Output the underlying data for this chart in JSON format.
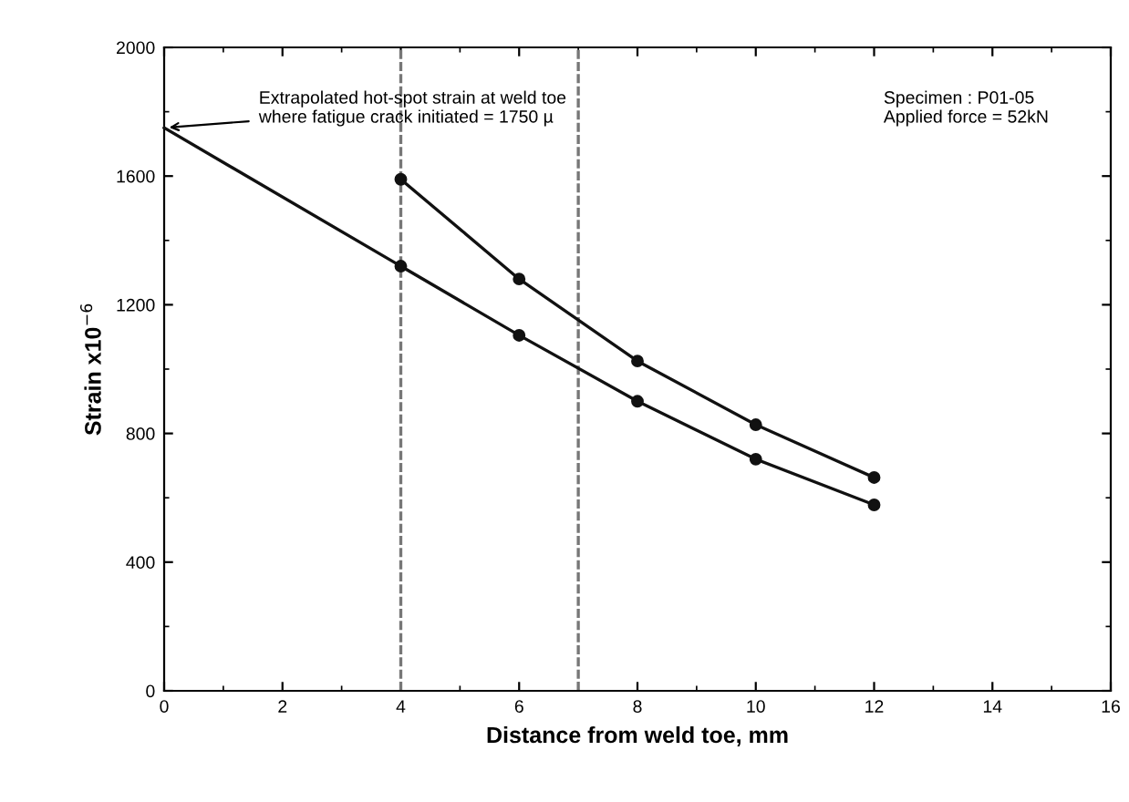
{
  "chart_data": {
    "type": "line",
    "xlabel": "Distance from weld toe, mm",
    "ylabel": "Strain x10$^{−6}$",
    "xlim": [
      0,
      16
    ],
    "xticks": [
      0,
      2,
      4,
      6,
      8,
      10,
      12,
      14,
      16
    ],
    "ylim": [
      0,
      2000
    ],
    "yticks": [
      0,
      400,
      800,
      1200,
      1600,
      2000
    ],
    "grid": false,
    "legend": false,
    "series": [
      {
        "color": "#111111",
        "marker": "circle",
        "x": [
          4,
          6,
          8,
          10,
          12
        ],
        "values": [
          1590,
          1280,
          1025,
          827,
          663
        ]
      },
      {
        "color": "#111111",
        "marker": "circle",
        "x": [
          4,
          6,
          8,
          10,
          12
        ],
        "values": [
          1320,
          1105,
          900,
          720,
          578
        ]
      },
      {
        "color": "#111111",
        "marker": "none",
        "x": [
          0,
          4
        ],
        "values": [
          1750,
          1320
        ]
      }
    ],
    "ref_lines": [
      {
        "axis": "x",
        "value": 4,
        "color": "#777777",
        "line_style": "dashed"
      },
      {
        "axis": "x",
        "value": 7,
        "color": "#777777",
        "line_style": "dashed"
      }
    ],
    "annotations": [
      {
        "text": "Extrapolated hot-spot strain at weld toe\nwhere fatigue crack initiated = 1750 µ",
        "x": 0,
        "y": 1750
      },
      "Specimen : P01-05\nApplied force = 52kN"
    ]
  }
}
